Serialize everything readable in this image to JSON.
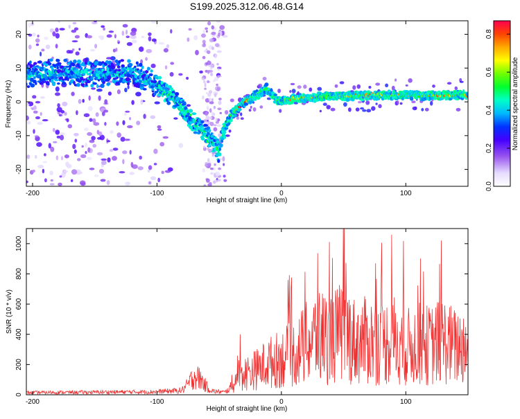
{
  "title": "S199.2025.312.06.48.G14",
  "chart_data": [
    {
      "type": "heatmap",
      "title": "S199.2025.312.06.48.G14",
      "xlabel": "Height of straight line (km)",
      "ylabel": "Frequency (Hz)",
      "xlim": [
        -205,
        150
      ],
      "ylim": [
        -25,
        24
      ],
      "xticks": [
        -200,
        -100,
        0,
        100
      ],
      "yticks": [
        -20,
        -10,
        0,
        10,
        20
      ],
      "xtick_labels": [
        "-200",
        "-100",
        "0",
        "100"
      ],
      "ytick_labels": [
        "-20",
        "-10",
        "0",
        "10",
        "20"
      ],
      "ridge": {
        "x": [
          -205,
          -180,
          -150,
          -120,
          -100,
          -90,
          -80,
          -70,
          -60,
          -50,
          -45,
          -40,
          -35,
          -30,
          -20,
          -12,
          -5,
          0,
          10,
          30,
          60,
          90,
          120,
          150
        ],
        "y": [
          8,
          9,
          8,
          9,
          5,
          2,
          -2,
          -6,
          -10,
          -15,
          -7,
          -4,
          -2,
          0,
          2,
          4,
          1,
          0,
          1,
          1.5,
          1.8,
          2,
          1.8,
          2
        ]
      },
      "colorbar": {
        "label": "Normalized spectral amplitude",
        "range": [
          0.0,
          0.87
        ],
        "ticks": [
          0.0,
          0.2,
          0.4,
          0.6,
          0.8
        ],
        "tick_labels": [
          "0.0",
          "0.2",
          "0.4",
          "0.6",
          "0.8"
        ]
      }
    },
    {
      "type": "line",
      "xlabel": "Height of straight line (km)",
      "ylabel": "SNR (10 * v/v)",
      "xlim": [
        -205,
        150
      ],
      "ylim": [
        0,
        1100
      ],
      "xticks": [
        -200,
        -100,
        0,
        100
      ],
      "yticks": [
        0,
        200,
        400,
        600,
        800,
        1000
      ],
      "xtick_labels": [
        "-200",
        "-100",
        "0",
        "100"
      ],
      "ytick_labels": [
        "0",
        "200",
        "400",
        "600",
        "800",
        "1000"
      ],
      "color": "#f03030",
      "envelope": {
        "x": [
          -205,
          -150,
          -100,
          -80,
          -75,
          -70,
          -65,
          -60,
          -55,
          -45,
          -38,
          -35,
          -30,
          -20,
          -10,
          0,
          10,
          20,
          30,
          40,
          50,
          60,
          70,
          80,
          90,
          100,
          110,
          120,
          130,
          140,
          150
        ],
        "y": [
          25,
          30,
          35,
          50,
          120,
          220,
          180,
          90,
          40,
          30,
          120,
          220,
          230,
          280,
          350,
          400,
          450,
          560,
          650,
          620,
          700,
          580,
          600,
          560,
          620,
          520,
          560,
          540,
          600,
          520,
          560
        ]
      }
    }
  ]
}
